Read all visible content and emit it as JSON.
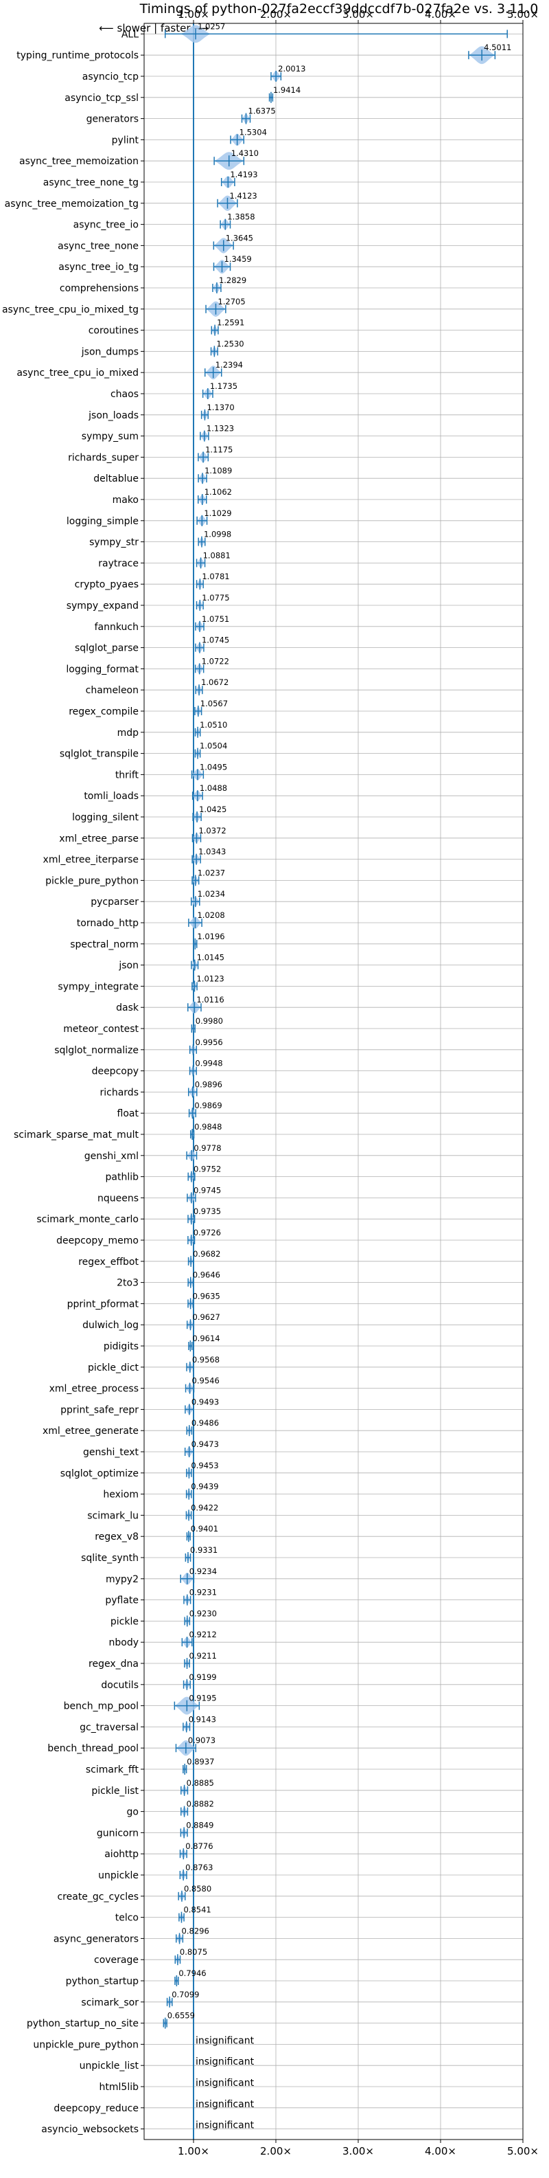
{
  "title": "Timings of python-027fa2eccf39ddccdf7b-027fa2e vs. 3.11.0",
  "direction_note": "⟵ slower | faster ⟶",
  "insignificant_label": "insignificant",
  "colors": {
    "violin": "#a6c8ec",
    "line": "#1f77b4",
    "grid": "#b0b0b0",
    "reference": "#1f77b4"
  },
  "chart_data": {
    "type": "violin",
    "title": "Timings of python-027fa2eccf39ddccdf7b-027fa2e vs. 3.11.0",
    "xlim": [
      0.4,
      5.0
    ],
    "x_ticks": [
      1.0,
      2.0,
      3.0,
      4.0,
      5.0
    ],
    "x_tick_labels": [
      "1.00×",
      "2.00×",
      "3.00×",
      "4.00×",
      "5.00×"
    ],
    "reference_line": 1.0,
    "grid": true,
    "categories": [
      "ALL",
      "typing_runtime_protocols",
      "asyncio_tcp",
      "asyncio_tcp_ssl",
      "generators",
      "pylint",
      "async_tree_memoization",
      "async_tree_none_tg",
      "async_tree_memoization_tg",
      "async_tree_io",
      "async_tree_none",
      "async_tree_io_tg",
      "comprehensions",
      "async_tree_cpu_io_mixed_tg",
      "coroutines",
      "json_dumps",
      "async_tree_cpu_io_mixed",
      "chaos",
      "json_loads",
      "sympy_sum",
      "richards_super",
      "deltablue",
      "mako",
      "logging_simple",
      "sympy_str",
      "raytrace",
      "crypto_pyaes",
      "sympy_expand",
      "fannkuch",
      "sqlglot_parse",
      "logging_format",
      "chameleon",
      "regex_compile",
      "mdp",
      "sqlglot_transpile",
      "thrift",
      "tomli_loads",
      "logging_silent",
      "xml_etree_parse",
      "xml_etree_iterparse",
      "pickle_pure_python",
      "pycparser",
      "tornado_http",
      "spectral_norm",
      "json",
      "sympy_integrate",
      "dask",
      "meteor_contest",
      "sqlglot_normalize",
      "deepcopy",
      "richards",
      "float",
      "scimark_sparse_mat_mult",
      "genshi_xml",
      "pathlib",
      "nqueens",
      "scimark_monte_carlo",
      "deepcopy_memo",
      "regex_effbot",
      "2to3",
      "pprint_pformat",
      "dulwich_log",
      "pidigits",
      "pickle_dict",
      "xml_etree_process",
      "pprint_safe_repr",
      "xml_etree_generate",
      "genshi_text",
      "sqlglot_optimize",
      "hexiom",
      "scimark_lu",
      "regex_v8",
      "sqlite_synth",
      "mypy2",
      "pyflate",
      "pickle",
      "nbody",
      "regex_dna",
      "docutils",
      "bench_mp_pool",
      "gc_traversal",
      "bench_thread_pool",
      "scimark_fft",
      "pickle_list",
      "go",
      "gunicorn",
      "aiohttp",
      "unpickle",
      "create_gc_cycles",
      "telco",
      "async_generators",
      "coverage",
      "python_startup",
      "scimark_sor",
      "python_startup_no_site",
      "unpickle_pure_python",
      "unpickle_list",
      "html5lib",
      "deepcopy_reduce",
      "asyncio_websockets"
    ],
    "values": [
      1.0257,
      4.5011,
      2.0013,
      1.9414,
      1.6375,
      1.5304,
      1.431,
      1.4193,
      1.4123,
      1.3858,
      1.3645,
      1.3459,
      1.2829,
      1.2705,
      1.2591,
      1.253,
      1.2394,
      1.1735,
      1.137,
      1.1323,
      1.1175,
      1.1089,
      1.1062,
      1.1029,
      1.0998,
      1.0881,
      1.0781,
      1.0775,
      1.0751,
      1.0745,
      1.0722,
      1.0672,
      1.0567,
      1.051,
      1.0504,
      1.0495,
      1.0488,
      1.0425,
      1.0372,
      1.0343,
      1.0237,
      1.0234,
      1.0208,
      1.0196,
      1.0145,
      1.0123,
      1.0116,
      0.998,
      0.9956,
      0.9948,
      0.9896,
      0.9869,
      0.9848,
      0.9778,
      0.9752,
      0.9745,
      0.9735,
      0.9726,
      0.9682,
      0.9646,
      0.9635,
      0.9627,
      0.9614,
      0.9568,
      0.9546,
      0.9493,
      0.9486,
      0.9473,
      0.9453,
      0.9439,
      0.9422,
      0.9401,
      0.9331,
      0.9234,
      0.9231,
      0.923,
      0.9212,
      0.9211,
      0.9199,
      0.9195,
      0.9143,
      0.9073,
      0.8937,
      0.8885,
      0.8882,
      0.8849,
      0.8776,
      0.8763,
      0.858,
      0.8541,
      0.8296,
      0.8075,
      0.7946,
      0.7099,
      0.6559,
      null,
      null,
      null,
      null,
      null
    ],
    "value_labels": [
      "1.0257",
      "4.5011",
      "2.0013",
      "1.9414",
      "1.6375",
      "1.5304",
      "1.4310",
      "1.4193",
      "1.4123",
      "1.3858",
      "1.3645",
      "1.3459",
      "1.2829",
      "1.2705",
      "1.2591",
      "1.2530",
      "1.2394",
      "1.1735",
      "1.1370",
      "1.1323",
      "1.1175",
      "1.1089",
      "1.1062",
      "1.1029",
      "1.0998",
      "1.0881",
      "1.0781",
      "1.0775",
      "1.0751",
      "1.0745",
      "1.0722",
      "1.0672",
      "1.0567",
      "1.0510",
      "1.0504",
      "1.0495",
      "1.0488",
      "1.0425",
      "1.0372",
      "1.0343",
      "1.0237",
      "1.0234",
      "1.0208",
      "1.0196",
      "1.0145",
      "1.0123",
      "1.0116",
      "0.9980",
      "0.9956",
      "0.9948",
      "0.9896",
      "0.9869",
      "0.9848",
      "0.9778",
      "0.9752",
      "0.9745",
      "0.9735",
      "0.9726",
      "0.9682",
      "0.9646",
      "0.9635",
      "0.9627",
      "0.9614",
      "0.9568",
      "0.9546",
      "0.9493",
      "0.9486",
      "0.9473",
      "0.9453",
      "0.9439",
      "0.9422",
      "0.9401",
      "0.9331",
      "0.9234",
      "0.9231",
      "0.9230",
      "0.9212",
      "0.9211",
      "0.9199",
      "0.9195",
      "0.9143",
      "0.9073",
      "0.8937",
      "0.8885",
      "0.8882",
      "0.8849",
      "0.8776",
      "0.8763",
      "0.8580",
      "0.8541",
      "0.8296",
      "0.8075",
      "0.7946",
      "0.7099",
      "0.6559",
      "insignificant",
      "insignificant",
      "insignificant",
      "insignificant",
      "insignificant"
    ],
    "spreads": [
      0.18,
      0.16,
      0.06,
      0.02,
      0.05,
      0.08,
      0.18,
      0.08,
      0.12,
      0.06,
      0.12,
      0.1,
      0.05,
      0.12,
      0.04,
      0.04,
      0.1,
      0.06,
      0.04,
      0.05,
      0.06,
      0.05,
      0.05,
      0.06,
      0.04,
      0.05,
      0.04,
      0.04,
      0.05,
      0.05,
      0.05,
      0.04,
      0.04,
      0.03,
      0.03,
      0.07,
      0.06,
      0.05,
      0.05,
      0.05,
      0.04,
      0.05,
      0.08,
      0.02,
      0.04,
      0.03,
      0.08,
      0.02,
      0.04,
      0.04,
      0.05,
      0.04,
      0.02,
      0.06,
      0.04,
      0.05,
      0.04,
      0.04,
      0.03,
      0.03,
      0.03,
      0.04,
      0.02,
      0.04,
      0.05,
      0.05,
      0.03,
      0.05,
      0.03,
      0.03,
      0.03,
      0.02,
      0.03,
      0.08,
      0.04,
      0.03,
      0.06,
      0.03,
      0.04,
      0.15,
      0.04,
      0.12,
      0.02,
      0.04,
      0.04,
      0.04,
      0.04,
      0.04,
      0.04,
      0.03,
      0.04,
      0.03,
      0.02,
      0.03,
      0.02,
      0,
      0,
      0,
      0,
      0
    ],
    "all_whisker": [
      0.6559,
      4.81
    ]
  }
}
